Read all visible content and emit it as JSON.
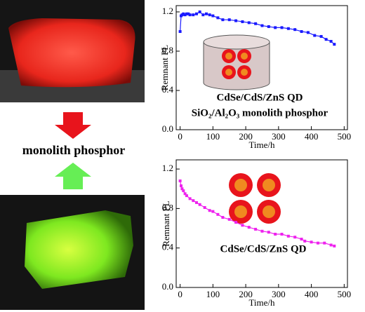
{
  "label": "monolith phosphor",
  "chart_data": [
    {
      "type": "line",
      "y_label": "Remnant PL",
      "x_label": "Time/h",
      "annotations": [
        "CdSe/CdS/ZnS QD",
        "SiO₂/Al₂O₃ monolith phosphor"
      ],
      "x": [
        0,
        3,
        6,
        10,
        15,
        20,
        25,
        30,
        40,
        50,
        60,
        70,
        80,
        90,
        100,
        115,
        130,
        150,
        170,
        190,
        210,
        230,
        250,
        270,
        290,
        310,
        330,
        350,
        370,
        390,
        410,
        430,
        445,
        460,
        470
      ],
      "values": [
        1.0,
        1.16,
        1.17,
        1.18,
        1.17,
        1.18,
        1.18,
        1.17,
        1.17,
        1.18,
        1.2,
        1.17,
        1.18,
        1.17,
        1.16,
        1.14,
        1.12,
        1.12,
        1.11,
        1.1,
        1.09,
        1.08,
        1.06,
        1.05,
        1.04,
        1.04,
        1.03,
        1.02,
        1.0,
        0.99,
        0.96,
        0.95,
        0.92,
        0.9,
        0.87
      ],
      "color": "#1a1aff",
      "xlim": [
        -12,
        510
      ],
      "xticks": [
        0,
        100,
        200,
        300,
        400,
        500
      ],
      "ylim": [
        0,
        1.264
      ],
      "yticks": [
        {
          "value": 0,
          "label": "0.0"
        },
        0.4,
        0.8,
        1.2
      ]
    },
    {
      "type": "line",
      "y_label": "Remnant PL",
      "x_label": "Time/h",
      "annotations": [
        "CdSe/CdS/ZnS QD"
      ],
      "x": [
        0,
        3,
        6,
        10,
        15,
        20,
        30,
        40,
        50,
        60,
        75,
        90,
        100,
        115,
        130,
        150,
        170,
        190,
        210,
        230,
        250,
        270,
        290,
        310,
        330,
        350,
        370,
        380,
        400,
        420,
        440,
        460,
        470
      ],
      "values": [
        1.08,
        1.03,
        1.0,
        0.98,
        0.95,
        0.93,
        0.9,
        0.88,
        0.86,
        0.84,
        0.81,
        0.78,
        0.77,
        0.74,
        0.71,
        0.69,
        0.66,
        0.63,
        0.61,
        0.59,
        0.57,
        0.56,
        0.54,
        0.54,
        0.52,
        0.51,
        0.49,
        0.47,
        0.46,
        0.45,
        0.45,
        0.43,
        0.42
      ],
      "color": "#ee22ee",
      "xlim": [
        -12,
        510
      ],
      "xticks": [
        0,
        100,
        200,
        300,
        400,
        500
      ],
      "ylim": [
        0,
        1.293
      ],
      "yticks": [
        {
          "value": 0,
          "label": "0.0"
        },
        0.4,
        0.8,
        1.2
      ]
    }
  ]
}
